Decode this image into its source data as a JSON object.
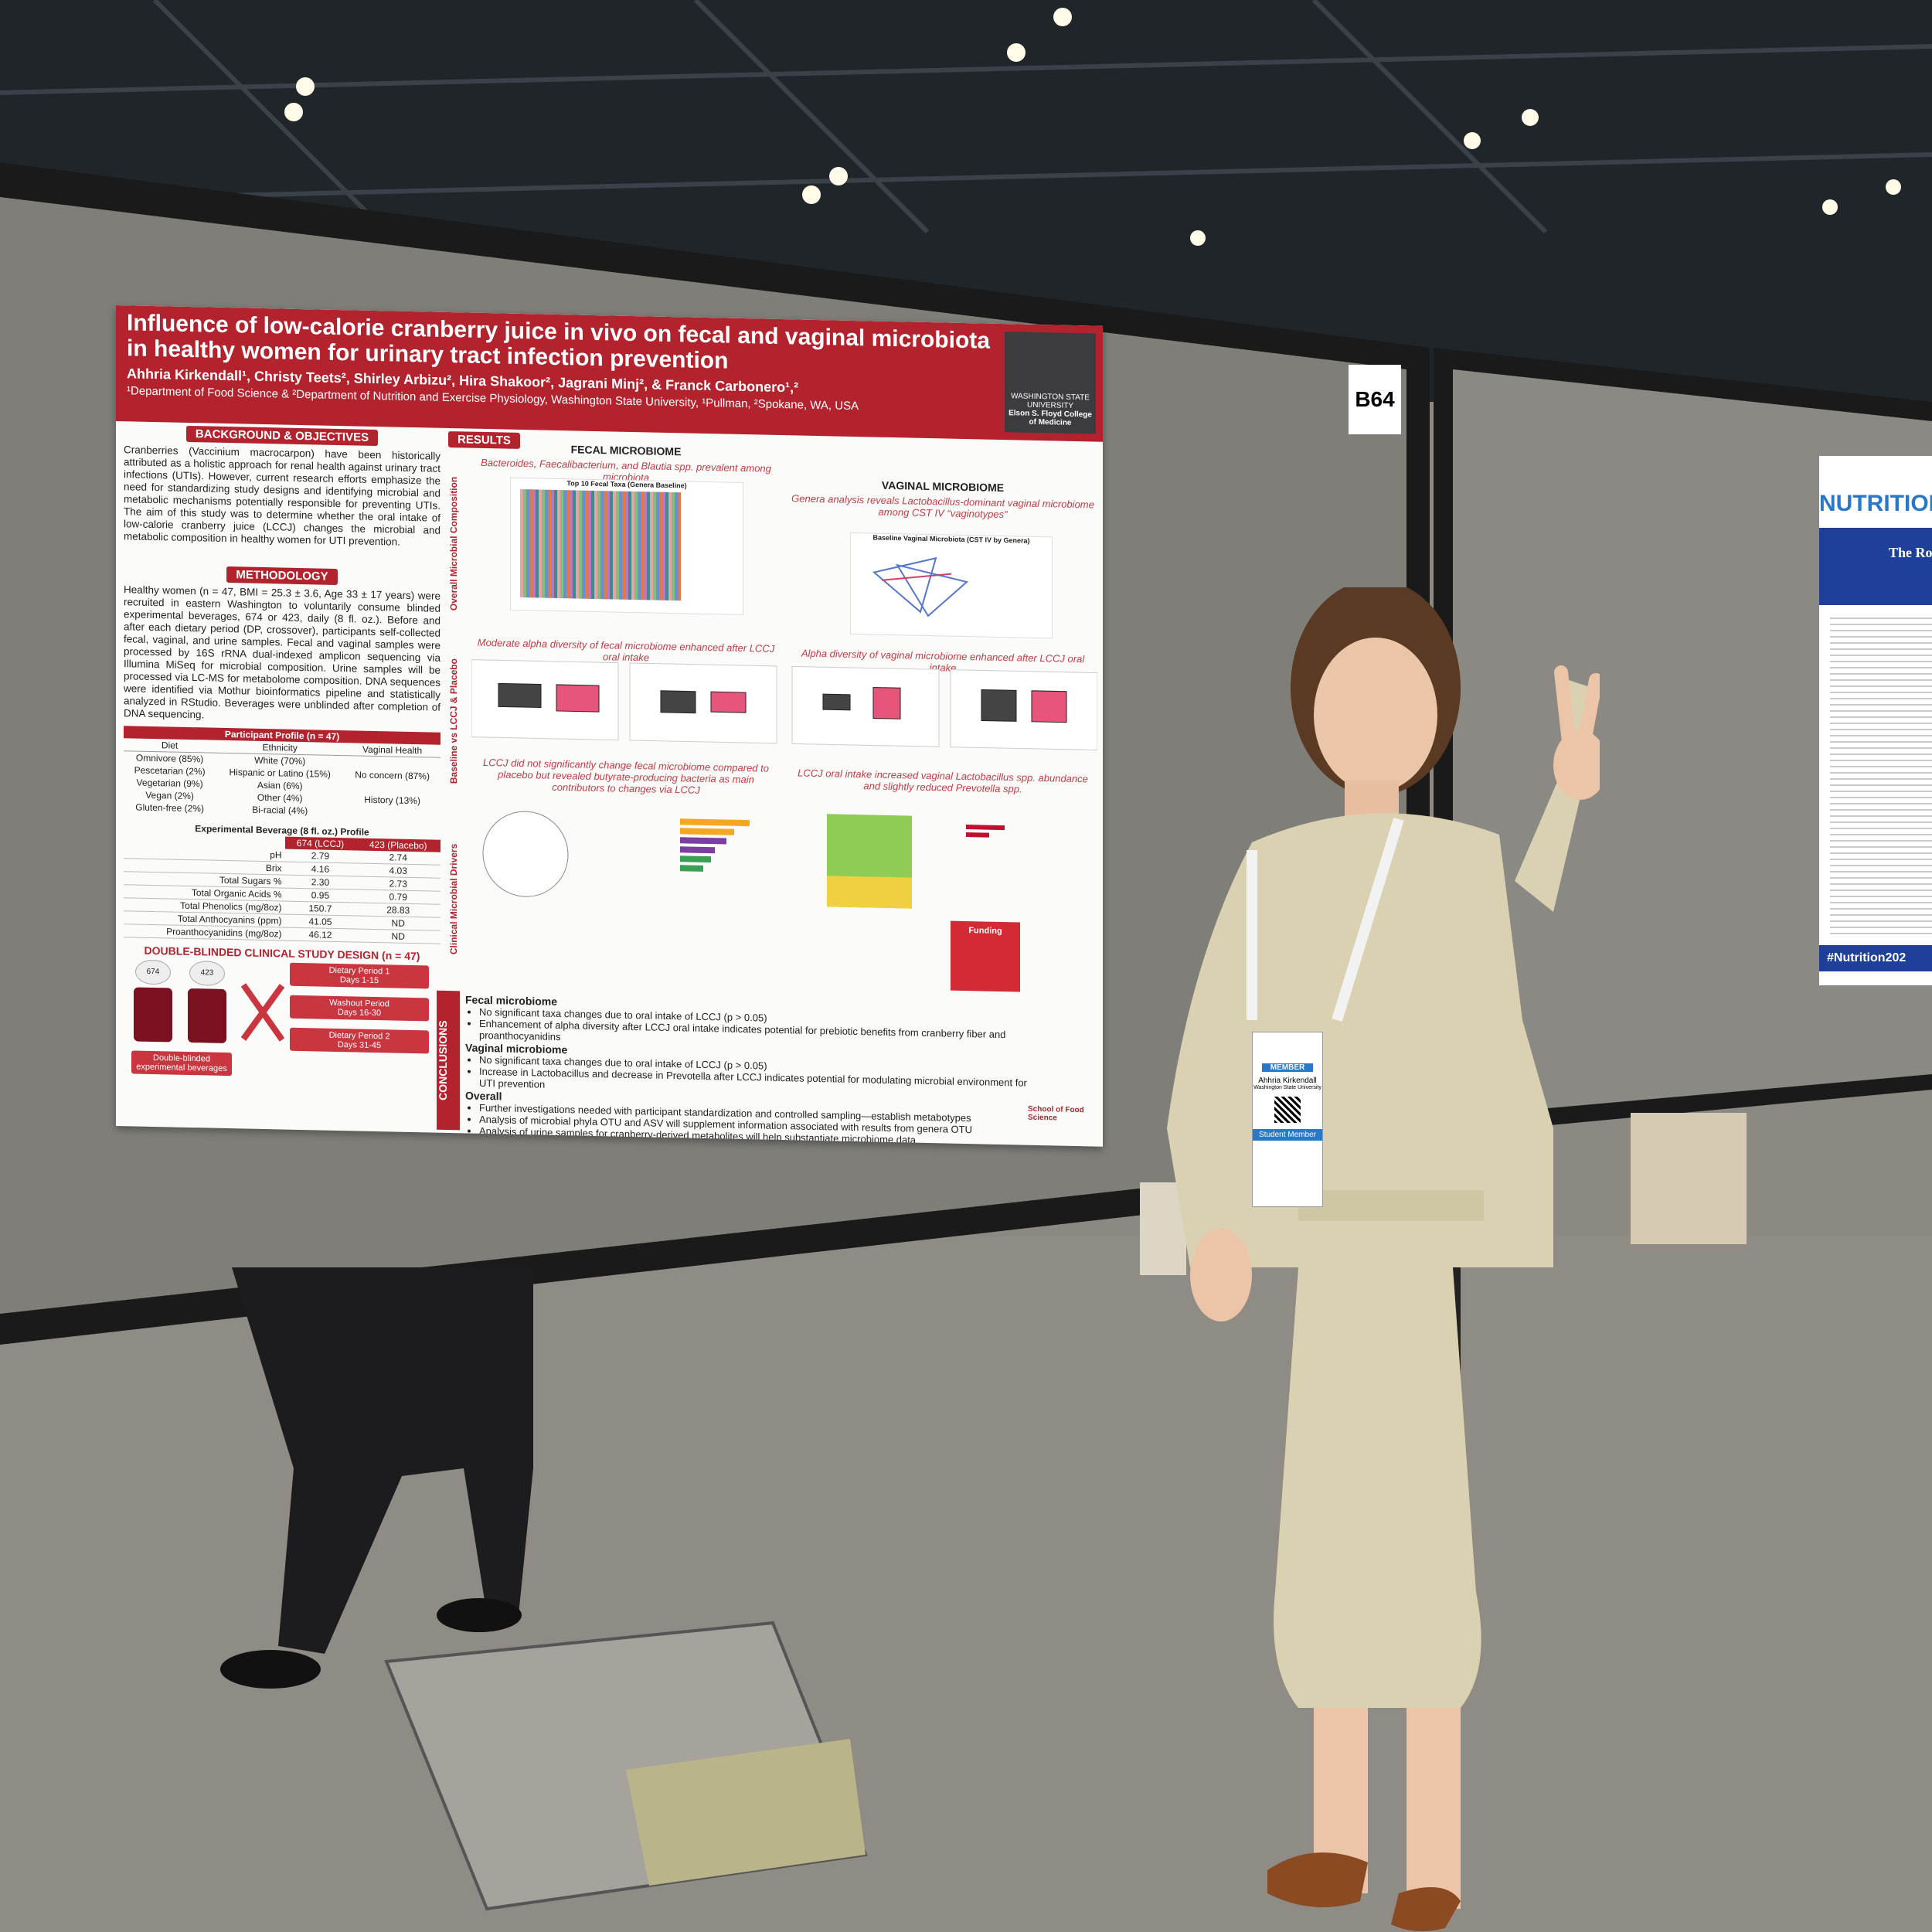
{
  "booth_sign": "B64",
  "poster": {
    "title": "Influence of low-calorie cranberry juice in vivo on fecal and vaginal microbiota in healthy women for urinary tract infection prevention",
    "authors": "Ahhria Kirkendall¹, Christy Teets², Shirley Arbizu², Hira Shakoor², Jagrani Minj², & Franck Carbonero¹,²",
    "affiliations": "¹Department of Food Science & ²Department of Nutrition and Exercise Physiology, Washington State University, ¹Pullman, ²Spokane, WA, USA",
    "logo": {
      "institution": "WASHINGTON STATE UNIVERSITY",
      "college": "Elson S. Floyd College of Medicine"
    },
    "background": {
      "heading": "BACKGROUND & OBJECTIVES",
      "text": "Cranberries (Vaccinium macrocarpon) have been historically attributed as a holistic approach for renal health against urinary tract infections (UTIs). However, current research efforts emphasize the need for standardizing study designs and identifying microbial and metabolic mechanisms potentially responsible for preventing UTIs. The aim of this study was to determine whether the oral intake of low-calorie cranberry juice (LCCJ) changes the microbial and metabolic composition in healthy women for UTI prevention."
    },
    "methodology": {
      "heading": "METHODOLOGY",
      "text": "Healthy women (n = 47, BMI = 25.3 ± 3.6, Age 33 ± 17 years) were recruited in eastern Washington to voluntarily consume blinded experimental beverages, 674 or 423, daily (8 fl. oz.). Before and after each dietary period (DP, crossover), participants self-collected fecal, vaginal, and urine samples. Fecal and vaginal samples were processed by 16S rRNA dual-indexed amplicon sequencing via Illumina MiSeq for microbial composition. Urine samples will be processed via LC-MS for metabolome composition. DNA sequences were identified via Mothur bioinformatics pipeline and statistically analyzed in RStudio. Beverages were unblinded after completion of DNA sequencing."
    },
    "participant_profile": {
      "title": "Participant Profile (n = 47)",
      "columns": [
        "Diet",
        "Ethnicity",
        "Vaginal Health"
      ],
      "diet": [
        "Omnivore (85%)",
        "Pescetarian (2%)",
        "Vegetarian (9%)",
        "Vegan (2%)",
        "Gluten-free (2%)"
      ],
      "ethnicity": [
        "White (70%)",
        "Hispanic or Latino (15%)",
        "Asian (6%)",
        "Other (4%)",
        "Bi-racial (4%)"
      ],
      "vaginal_health": [
        "No concern (87%)",
        "History (13%)"
      ]
    },
    "beverage_profile": {
      "title": "Experimental Beverage (8 fl. oz.) Profile",
      "columns": [
        "674 (LCCJ)",
        "423 (Placebo)"
      ],
      "rows": [
        [
          "pH",
          "2.79",
          "2.74"
        ],
        [
          "Brix",
          "4.16",
          "4.03"
        ],
        [
          "Total Sugars %",
          "2.30",
          "2.73"
        ],
        [
          "Total Organic Acids %",
          "0.95",
          "0.79"
        ],
        [
          "Total Phenolics (mg/8oz)",
          "150.7",
          "28.83"
        ],
        [
          "Total Anthocyanins (ppm)",
          "41.05",
          "ND"
        ],
        [
          "Proanthocyanidins (mg/8oz)",
          "46.12",
          "ND"
        ]
      ]
    },
    "study_design": {
      "heading": "DOUBLE-BLINDED CLINICAL STUDY DESIGN (n = 47)",
      "bottles": [
        "674",
        "423"
      ],
      "caption": "Double-blinded experimental beverages",
      "steps": [
        {
          "label": "Dietary Period 1",
          "days": "Days 1-15"
        },
        {
          "label": "Washout Period",
          "days": "Days 16-30"
        },
        {
          "label": "Dietary Period 2",
          "days": "Days 31-45"
        }
      ]
    },
    "results": {
      "heading": "RESULTS",
      "rows": [
        "Overall Microbial Composition",
        "Baseline vs LCCJ & Placebo",
        "Clinical Microbial Drivers"
      ],
      "fecal_heading": "FECAL MICROBIOME",
      "fecal_finding": "Bacteroides, Faecalibacterium, and Blautia spp. prevalent among microbiota",
      "fecal_figure": "Top 10 Fecal Taxa (Genera Baseline)",
      "vaginal_heading": "VAGINAL MICROBIOME",
      "vaginal_finding": "Genera analysis reveals Lactobacillus-dominant vaginal microbiome among CST IV “vaginotypes”",
      "vaginal_figure": "Baseline Vaginal Microbiota (CST IV by Genera)",
      "fecal_alpha": "Moderate alpha diversity of fecal microbiome enhanced after LCCJ oral intake",
      "vaginal_alpha": "Alpha diversity of vaginal microbiome enhanced after LCCJ oral intake",
      "fecal_drivers": "LCCJ did not significantly change fecal microbiome compared to placebo but revealed butyrate-producing bacteria as main contributors to changes via LCCJ",
      "vaginal_drivers": "LCCJ oral intake increased vaginal Lactobacillus spp. abundance and slightly reduced Prevotella spp."
    },
    "funding": "Funding",
    "conclusions": {
      "heading": "CONCLUSIONS",
      "groups": [
        {
          "title": "Fecal microbiome",
          "items": [
            "No significant taxa changes due to oral intake of LCCJ (p > 0.05)",
            "Enhancement of alpha diversity after LCCJ oral intake indicates potential for prebiotic benefits from cranberry fiber and proanthocyanidins"
          ]
        },
        {
          "title": "Vaginal microbiome",
          "items": [
            "No significant taxa changes due to oral intake of LCCJ (p > 0.05)",
            "Increase in Lactobacillus and decrease in Prevotella after LCCJ indicates potential for modulating microbial environment for UTI prevention"
          ]
        },
        {
          "title": "Overall",
          "items": [
            "Further investigations needed with participant standardization and controlled sampling—establish metabotypes",
            "Analysis of microbial phyla OTU and ASV will supplement information associated with results from genera OTU",
            "Analysis of urine samples for cranberry-derived metabolites will help substantiate microbiome data"
          ]
        }
      ]
    },
    "footer_logo": "School of Food Science"
  },
  "badge": {
    "type": "MEMBER",
    "name": "Ahhria Kirkendall",
    "affiliation": "Washington State University",
    "category": "Student Member"
  },
  "neighbor_poster": {
    "banner": "NUTRITION",
    "title": "The Role of",
    "hashtag": "#Nutrition202"
  }
}
